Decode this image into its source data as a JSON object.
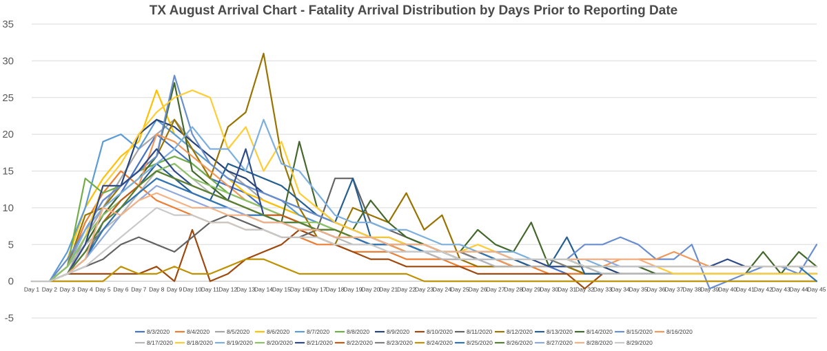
{
  "chart_data": {
    "type": "line",
    "title": "TX August Arrival Chart - Fatality Arrival Distribution by Days Prior to Reporting Date",
    "xlabel": "",
    "ylabel": "",
    "ylim": [
      -5,
      35
    ],
    "yticks": [
      -5,
      0,
      5,
      10,
      15,
      20,
      25,
      30,
      35
    ],
    "grid": true,
    "legend_position": "bottom",
    "categories": [
      "Day 1",
      "Day 2",
      "Day 3",
      "Day 4",
      "Day 5",
      "Day 6",
      "Day 7",
      "Day 8",
      "Day 9",
      "Day 10",
      "Day 11",
      "Day 12",
      "Day 13",
      "Day 14",
      "Day 15",
      "Day 16",
      "Day 17",
      "Day 18",
      "Day 19",
      "Day 20",
      "Day 21",
      "Day 22",
      "Day 23",
      "Day 24",
      "Day 25",
      "Day 26",
      "Day 27",
      "Day 28",
      "Day 29",
      "Day 30",
      "Day 31",
      "Day 32",
      "Day 33",
      "Day 34",
      "Day 35",
      "Day 36",
      "Day 37",
      "Day 38",
      "Day 39",
      "Day 40",
      "Day 41",
      "Day 42",
      "Day 43",
      "Day 44",
      "Day 45"
    ],
    "series": [
      {
        "name": "8/3/2020",
        "color": "#4472C4",
        "values": [
          0,
          0,
          1,
          5,
          9,
          12,
          16,
          20,
          18,
          16,
          14,
          13,
          12,
          10,
          9,
          8,
          7,
          6,
          6,
          5,
          5,
          4,
          4,
          3,
          3,
          3,
          2,
          2,
          2,
          2,
          1,
          1,
          1,
          1,
          1,
          1,
          1,
          1,
          1,
          1,
          1,
          1,
          1,
          1,
          1
        ]
      },
      {
        "name": "8/4/2020",
        "color": "#ED7D31",
        "values": [
          0,
          0,
          2,
          8,
          12,
          15,
          13,
          11,
          10,
          9,
          8,
          8,
          7,
          7,
          6,
          6,
          5,
          5,
          4,
          4,
          4,
          3,
          3,
          3,
          2,
          2,
          2,
          2,
          2,
          1,
          1,
          1,
          1,
          1,
          1,
          1,
          1,
          1,
          1,
          1,
          1,
          1,
          1,
          1,
          1
        ]
      },
      {
        "name": "8/5/2020",
        "color": "#A5A5A5",
        "values": [
          0,
          0,
          1,
          6,
          10,
          14,
          18,
          20,
          22,
          19,
          17,
          15,
          13,
          11,
          10,
          9,
          8,
          7,
          6,
          6,
          5,
          5,
          4,
          4,
          3,
          3,
          3,
          2,
          2,
          2,
          2,
          1,
          1,
          1,
          1,
          1,
          1,
          1,
          1,
          1,
          1,
          1,
          1,
          1,
          1
        ]
      },
      {
        "name": "8/6/2020",
        "color": "#FFC000",
        "values": [
          0,
          0,
          3,
          10,
          14,
          17,
          19,
          26,
          20,
          18,
          16,
          14,
          12,
          11,
          10,
          9,
          8,
          7,
          6,
          6,
          5,
          5,
          4,
          4,
          3,
          3,
          3,
          2,
          2,
          2,
          2,
          1,
          1,
          1,
          1,
          1,
          1,
          1,
          1,
          1,
          1,
          1,
          1,
          1,
          1
        ]
      },
      {
        "name": "8/7/2020",
        "color": "#5B9BD5",
        "values": [
          0,
          0,
          4,
          10,
          19,
          20,
          18,
          22,
          20,
          18,
          16,
          14,
          13,
          12,
          11,
          9,
          8,
          7,
          6,
          6,
          5,
          5,
          4,
          4,
          4,
          3,
          3,
          3,
          2,
          2,
          2,
          2,
          1,
          1,
          1,
          1,
          1,
          1,
          1,
          1,
          1,
          1,
          1,
          1,
          1
        ]
      },
      {
        "name": "8/8/2020",
        "color": "#70AD47",
        "values": [
          0,
          0,
          2,
          14,
          12,
          13,
          15,
          16,
          17,
          16,
          14,
          12,
          11,
          10,
          9,
          8,
          7,
          7,
          6,
          5,
          5,
          4,
          4,
          4,
          3,
          3,
          3,
          2,
          2,
          2,
          2,
          1,
          1,
          1,
          1,
          1,
          1,
          1,
          1,
          1,
          1,
          1,
          1,
          1,
          1
        ]
      },
      {
        "name": "8/9/2020",
        "color": "#264478",
        "values": [
          0,
          0,
          2,
          7,
          11,
          13,
          20,
          22,
          21,
          19,
          17,
          15,
          14,
          12,
          11,
          10,
          9,
          8,
          7,
          6,
          6,
          5,
          5,
          4,
          4,
          3,
          3,
          3,
          2,
          2,
          2,
          2,
          2,
          1,
          1,
          1,
          1,
          1,
          1,
          1,
          1,
          1,
          1,
          1,
          1
        ]
      },
      {
        "name": "8/10/2020",
        "color": "#9E480E",
        "values": [
          0,
          0,
          1,
          1,
          1,
          1,
          1,
          2,
          0,
          7,
          0,
          1,
          3,
          4,
          5,
          7,
          6,
          5,
          4,
          3,
          3,
          2,
          2,
          2,
          2,
          1,
          1,
          1,
          1,
          1,
          1,
          -1,
          1,
          1,
          1,
          1,
          1,
          1,
          1,
          1,
          1,
          1,
          1,
          1,
          1
        ]
      },
      {
        "name": "8/11/2020",
        "color": "#636363",
        "values": [
          0,
          0,
          1,
          2,
          3,
          5,
          6,
          5,
          4,
          6,
          8,
          9,
          8,
          7,
          6,
          6,
          7,
          14,
          14,
          8,
          7,
          6,
          5,
          4,
          3,
          3,
          3,
          2,
          2,
          2,
          2,
          1,
          1,
          1,
          1,
          1,
          1,
          1,
          1,
          1,
          1,
          1,
          1,
          1,
          1
        ]
      },
      {
        "name": "8/12/2020",
        "color": "#997300",
        "values": [
          0,
          0,
          2,
          9,
          10,
          13,
          15,
          17,
          22,
          18,
          14,
          21,
          23,
          31,
          17,
          10,
          6,
          5,
          10,
          9,
          8,
          12,
          7,
          9,
          3,
          2,
          2,
          2,
          2,
          2,
          2,
          1,
          1,
          1,
          1,
          1,
          1,
          1,
          1,
          1,
          1,
          1,
          1,
          1,
          1
        ]
      },
      {
        "name": "8/13/2020",
        "color": "#255E91",
        "values": [
          0,
          0,
          1,
          3,
          8,
          11,
          13,
          16,
          14,
          12,
          11,
          16,
          15,
          14,
          13,
          11,
          9,
          8,
          14,
          6,
          5,
          5,
          4,
          4,
          3,
          3,
          3,
          3,
          2,
          2,
          6,
          1,
          1,
          1,
          1,
          1,
          1,
          1,
          1,
          1,
          1,
          1,
          1,
          1,
          1
        ]
      },
      {
        "name": "8/14/2020",
        "color": "#43682B",
        "values": [
          0,
          0,
          2,
          5,
          9,
          12,
          14,
          17,
          27,
          15,
          13,
          11,
          10,
          9,
          8,
          19,
          10,
          8,
          7,
          11,
          8,
          6,
          5,
          4,
          4,
          7,
          5,
          4,
          8,
          2,
          2,
          2,
          2,
          2,
          2,
          1,
          1,
          1,
          1,
          1,
          1,
          4,
          1,
          4,
          2
        ]
      },
      {
        "name": "8/15/2020",
        "color": "#698ED0",
        "values": [
          0,
          0,
          3,
          7,
          11,
          13,
          15,
          17,
          28,
          20,
          16,
          14,
          13,
          12,
          11,
          10,
          9,
          8,
          7,
          6,
          6,
          5,
          5,
          4,
          4,
          4,
          3,
          3,
          3,
          3,
          3,
          5,
          5,
          6,
          5,
          3,
          3,
          5,
          -1,
          0,
          1,
          2,
          2,
          1,
          5
        ]
      },
      {
        "name": "8/16/2020",
        "color": "#F1975A",
        "values": [
          0,
          0,
          1,
          4,
          7,
          10,
          13,
          20,
          19,
          17,
          15,
          13,
          11,
          10,
          9,
          8,
          7,
          6,
          6,
          5,
          5,
          4,
          4,
          3,
          3,
          3,
          3,
          2,
          2,
          2,
          2,
          2,
          2,
          3,
          3,
          3,
          4,
          3,
          2,
          2,
          2,
          2,
          2,
          2,
          2
        ]
      },
      {
        "name": "8/17/2020",
        "color": "#B7B7B7",
        "values": [
          0,
          0,
          2,
          5,
          7,
          9,
          12,
          15,
          16,
          14,
          12,
          11,
          10,
          9,
          8,
          7,
          7,
          6,
          5,
          5,
          4,
          4,
          4,
          3,
          3,
          3,
          2,
          2,
          2,
          2,
          2,
          2,
          1,
          1,
          1,
          1,
          1,
          1,
          1,
          1,
          1,
          1,
          1,
          1,
          1
        ]
      },
      {
        "name": "8/18/2020",
        "color": "#FFCD33",
        "values": [
          0,
          0,
          2,
          6,
          13,
          16,
          20,
          23,
          25,
          26,
          25,
          18,
          21,
          15,
          19,
          12,
          10,
          8,
          7,
          6,
          6,
          5,
          5,
          4,
          4,
          5,
          4,
          3,
          3,
          3,
          2,
          2,
          2,
          2,
          2,
          2,
          1,
          1,
          1,
          1,
          1,
          1,
          1,
          1,
          1
        ]
      },
      {
        "name": "8/19/2020",
        "color": "#7CAFDD",
        "values": [
          0,
          0,
          2,
          7,
          10,
          12,
          14,
          16,
          18,
          21,
          18,
          18,
          15,
          22,
          16,
          15,
          12,
          9,
          8,
          8,
          7,
          7,
          6,
          5,
          5,
          4,
          4,
          4,
          3,
          3,
          3,
          3,
          2,
          2,
          2,
          2,
          2,
          2,
          2,
          2,
          2,
          2,
          2,
          2,
          2
        ]
      },
      {
        "name": "8/20/2020",
        "color": "#8CC168",
        "values": [
          0,
          0,
          2,
          6,
          9,
          11,
          13,
          15,
          16,
          14,
          13,
          12,
          11,
          10,
          9,
          8,
          8,
          7,
          6,
          6,
          5,
          5,
          5,
          4,
          4,
          4,
          3,
          3,
          3,
          3,
          2,
          2,
          2,
          2,
          2,
          2,
          2,
          2,
          2,
          2,
          2,
          2,
          2,
          2,
          2
        ]
      },
      {
        "name": "8/21/2020",
        "color": "#2E4A8A",
        "values": [
          0,
          0,
          1,
          5,
          13,
          13,
          15,
          18,
          15,
          13,
          12,
          11,
          18,
          9,
          8,
          8,
          7,
          6,
          6,
          5,
          5,
          5,
          4,
          4,
          4,
          3,
          3,
          3,
          3,
          2,
          2,
          2,
          2,
          2,
          2,
          2,
          2,
          2,
          2,
          3,
          2,
          2,
          2,
          2,
          2
        ]
      },
      {
        "name": "8/22/2020",
        "color": "#C45A14",
        "values": [
          0,
          0,
          1,
          4,
          8,
          11,
          13,
          15,
          14,
          13,
          12,
          11,
          10,
          9,
          9,
          8,
          7,
          7,
          6,
          6,
          5,
          5,
          5,
          4,
          4,
          4,
          3,
          3,
          3,
          3,
          3,
          2,
          2,
          2,
          2,
          2,
          2,
          2,
          2,
          2,
          2,
          2,
          2,
          2,
          2
        ]
      },
      {
        "name": "8/23/2020",
        "color": "#7F7F7F",
        "values": [
          0,
          0,
          1,
          4,
          7,
          10,
          12,
          14,
          13,
          12,
          11,
          10,
          9,
          8,
          8,
          7,
          7,
          6,
          6,
          5,
          5,
          5,
          4,
          4,
          4,
          3,
          3,
          3,
          3,
          3,
          2,
          2,
          2,
          2,
          2,
          2,
          2,
          2,
          2,
          2,
          2,
          2,
          2,
          2,
          2
        ]
      },
      {
        "name": "8/24/2020",
        "color": "#BF9000",
        "values": [
          0,
          0,
          0,
          0,
          0,
          2,
          1,
          1,
          2,
          1,
          1,
          2,
          3,
          3,
          2,
          1,
          1,
          1,
          1,
          1,
          1,
          1,
          0,
          0,
          0,
          0,
          0,
          0,
          0,
          0,
          0,
          0,
          0,
          0,
          0,
          0,
          0,
          0,
          0,
          0,
          0,
          0,
          0,
          0,
          0
        ]
      },
      {
        "name": "8/25/2020",
        "color": "#2F75B5",
        "values": [
          0,
          0,
          1,
          3,
          7,
          10,
          12,
          14,
          13,
          12,
          11,
          10,
          9,
          9,
          8,
          7,
          7,
          6,
          6,
          5,
          5,
          5,
          4,
          4,
          4,
          4,
          3,
          3,
          3,
          3,
          3,
          2,
          2,
          2,
          2,
          2,
          2,
          2,
          2,
          2,
          2,
          2,
          2,
          2,
          0
        ]
      },
      {
        "name": "8/26/2020",
        "color": "#548235",
        "values": [
          0,
          0,
          1,
          4,
          8,
          10,
          13,
          15,
          14,
          13,
          12,
          11,
          10,
          9,
          8,
          8,
          7,
          7,
          6,
          6,
          5,
          5,
          5,
          4,
          4,
          4,
          4,
          3,
          3,
          3,
          3,
          2,
          2,
          2,
          2,
          2,
          2,
          2,
          2,
          2,
          2,
          2,
          2,
          2,
          2
        ]
      },
      {
        "name": "8/27/2020",
        "color": "#8EA9DB",
        "values": [
          0,
          0,
          1,
          3,
          6,
          9,
          11,
          13,
          12,
          11,
          10,
          10,
          9,
          8,
          8,
          7,
          7,
          6,
          6,
          6,
          5,
          5,
          5,
          4,
          4,
          4,
          4,
          3,
          3,
          3,
          3,
          3,
          3,
          2,
          2,
          2,
          2,
          2,
          2,
          2,
          2,
          2,
          2,
          2,
          2
        ]
      },
      {
        "name": "8/28/2020",
        "color": "#F4B183",
        "values": [
          0,
          0,
          1,
          3,
          10,
          9,
          11,
          12,
          11,
          10,
          10,
          9,
          9,
          8,
          8,
          7,
          7,
          6,
          6,
          6,
          5,
          5,
          5,
          4,
          4,
          4,
          4,
          3,
          3,
          3,
          3,
          3,
          3,
          3,
          3,
          2,
          2,
          2,
          2,
          2,
          2,
          2,
          2,
          2,
          2
        ]
      },
      {
        "name": "8/29/2020",
        "color": "#C9C9C9",
        "values": [
          0,
          0,
          1,
          2,
          4,
          6,
          8,
          10,
          9,
          9,
          8,
          8,
          7,
          7,
          6,
          6,
          6,
          5,
          5,
          5,
          4,
          4,
          4,
          4,
          3,
          3,
          3,
          3,
          3,
          3,
          3,
          2,
          2,
          2,
          2,
          2,
          2,
          2,
          2,
          2,
          2,
          2,
          2,
          2,
          2
        ]
      }
    ]
  }
}
